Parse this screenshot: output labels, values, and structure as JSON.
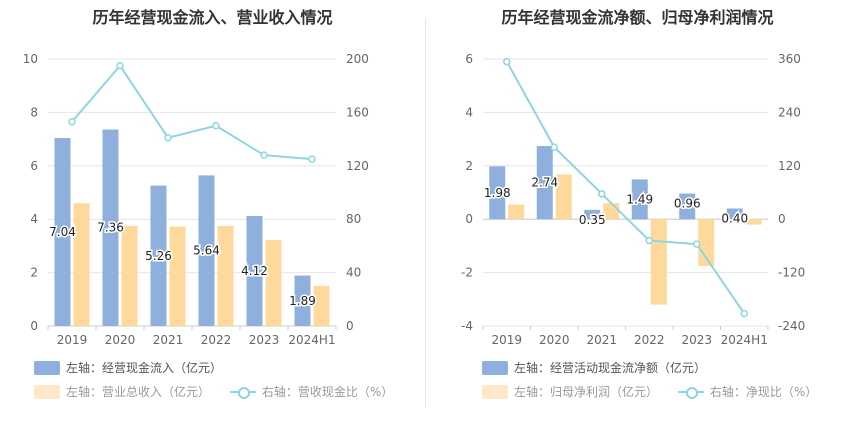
{
  "chart_data": [
    {
      "type": "bar",
      "title": "历年经营现金流入、营业收入情况",
      "categories": [
        "2019",
        "2020",
        "2021",
        "2022",
        "2023",
        "2024H1"
      ],
      "series": [
        {
          "name": "左轴：经营现金流入（亿元）",
          "axis": "left",
          "type": "bar",
          "color": "#8fb0dd",
          "values": [
            7.04,
            7.36,
            5.26,
            5.64,
            4.12,
            1.89
          ],
          "labels": [
            "7.04",
            "7.36",
            "5.26",
            "5.64",
            "4.12",
            "1.89"
          ]
        },
        {
          "name": "左轴：营业总收入（亿元）",
          "axis": "left",
          "type": "bar",
          "color": "#ffd99c",
          "values": [
            4.6,
            3.75,
            3.72,
            3.75,
            3.22,
            1.5
          ]
        },
        {
          "name": "右轴：营收现金比（%）",
          "axis": "right",
          "type": "line",
          "color": "#8dd6e0",
          "values": [
            153,
            195,
            141,
            150,
            128,
            125
          ]
        }
      ],
      "ylim_left": [
        0,
        10
      ],
      "yticks_left": [
        0,
        2,
        4,
        6,
        8,
        10
      ],
      "ylim_right": [
        0,
        200
      ],
      "yticks_right": [
        0,
        40,
        80,
        120,
        160,
        200
      ],
      "grid": true,
      "legend": "bottom"
    },
    {
      "type": "bar",
      "title": "历年经营现金流净额、归母净利润情况",
      "categories": [
        "2019",
        "2020",
        "2021",
        "2022",
        "2023",
        "2024H1"
      ],
      "series": [
        {
          "name": "左轴：经营活动现金流净额（亿元）",
          "axis": "left",
          "type": "bar",
          "color": "#8fb0dd",
          "values": [
            1.98,
            2.74,
            0.35,
            1.49,
            0.96,
            0.4
          ],
          "labels": [
            "1.98",
            "2.74",
            "0.35",
            "1.49",
            "0.96",
            "0.40"
          ]
        },
        {
          "name": "左轴：归母净利润（亿元）",
          "axis": "left",
          "type": "bar",
          "color": "#ffd99c",
          "values": [
            0.55,
            1.68,
            0.6,
            -3.2,
            -1.75,
            -0.2
          ]
        },
        {
          "name": "右轴：净现比（%）",
          "axis": "right",
          "type": "line",
          "color": "#8dd6e0",
          "values": [
            354,
            162,
            57,
            -48,
            -56,
            -212
          ]
        }
      ],
      "ylim_left": [
        -4,
        6
      ],
      "yticks_left": [
        -4,
        -2,
        0,
        2,
        4,
        6
      ],
      "ylim_right": [
        -240,
        360
      ],
      "yticks_right": [
        -240,
        -120,
        0,
        120,
        240,
        360
      ],
      "grid": true,
      "legend": "bottom"
    }
  ]
}
